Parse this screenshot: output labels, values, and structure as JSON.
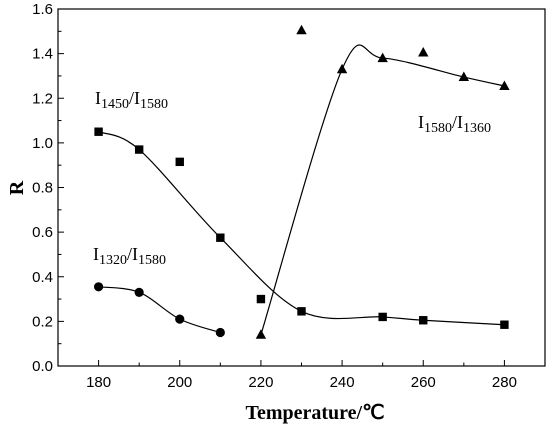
{
  "chart_data": {
    "type": "scatter",
    "xlabel": "Temperature/℃",
    "ylabel": "R",
    "xlim": [
      170,
      290
    ],
    "ylim": [
      0.0,
      1.6
    ],
    "x_ticks": [
      "180",
      "200",
      "220",
      "240",
      "260",
      "280"
    ],
    "y_ticks": [
      "0.0",
      "0.2",
      "0.4",
      "0.6",
      "0.8",
      "1.0",
      "1.2",
      "1.4",
      "1.6"
    ],
    "grid": false,
    "legend": "none",
    "series": [
      {
        "marker": "square",
        "x": [
          180,
          190,
          200,
          210,
          220,
          230,
          250,
          260,
          280
        ],
        "y": [
          1.05,
          0.97,
          0.915,
          0.575,
          0.3,
          0.245,
          0.22,
          0.205,
          0.185
        ]
      },
      {
        "marker": "circle",
        "x": [
          180,
          190,
          200,
          210
        ],
        "y": [
          0.355,
          0.33,
          0.21,
          0.15
        ]
      },
      {
        "marker": "triangle",
        "x": [
          220,
          230,
          240,
          250,
          260,
          270,
          280
        ],
        "y": [
          0.14,
          1.505,
          1.33,
          1.38,
          1.405,
          1.295,
          1.255
        ]
      }
    ],
    "annotations": [
      {
        "main1": "I",
        "sub1": "1450",
        "sep": "/I",
        "sub2": "1580"
      },
      {
        "main1": "I",
        "sub1": "1320",
        "sep": "/I",
        "sub2": "1580"
      },
      {
        "main1": "I",
        "sub1": "1580",
        "sep": "/I",
        "sub2": "1360"
      }
    ]
  }
}
